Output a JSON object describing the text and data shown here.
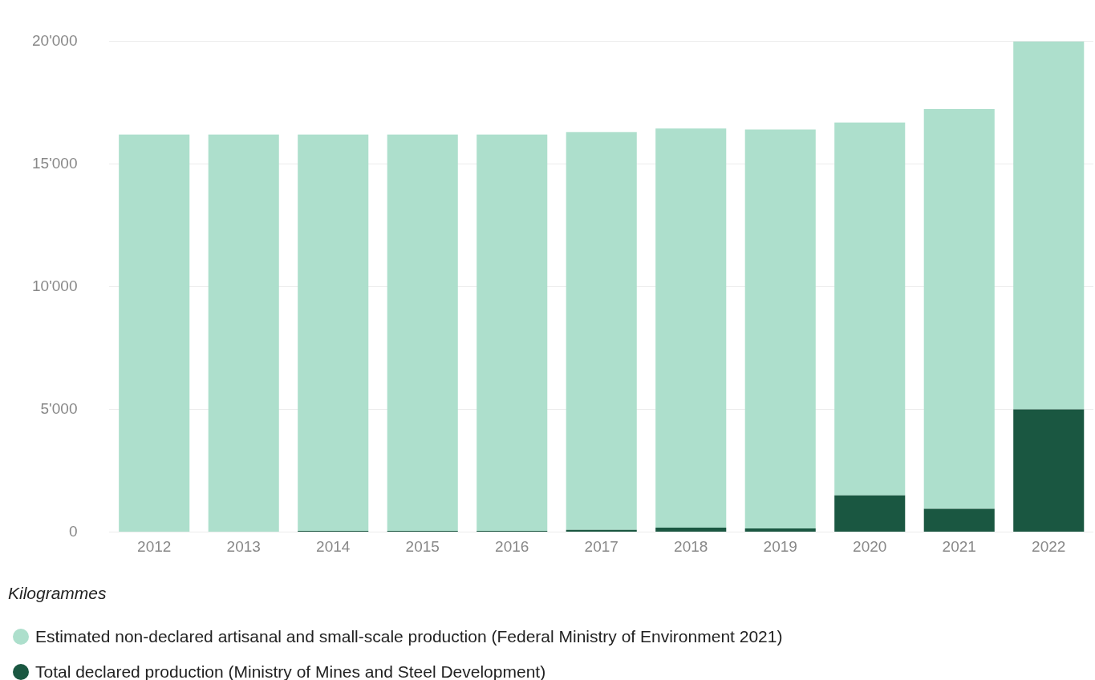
{
  "chart_data": {
    "type": "bar",
    "stacked": true,
    "ylabel": "Kilogrammes",
    "categories": [
      "2012",
      "2013",
      "2014",
      "2015",
      "2016",
      "2017",
      "2018",
      "2019",
      "2020",
      "2021",
      "2022"
    ],
    "series": [
      {
        "name": "Total declared production (Ministry of Mines and Steel Development)",
        "color": "#1a5741",
        "values": [
          0,
          0,
          50,
          50,
          50,
          90,
          180,
          150,
          1500,
          950,
          5000
        ]
      },
      {
        "name": "Estimated non-declared artisanal and small-scale production (Federal Ministry of Environment 2021)",
        "color": "#addfcc",
        "values": [
          16200,
          16200,
          16150,
          16150,
          16150,
          16210,
          16260,
          16250,
          15190,
          16290,
          15000
        ]
      }
    ],
    "ylim": [
      0,
      20000
    ],
    "yticks": [
      {
        "value": 0,
        "label": "0"
      },
      {
        "value": 5000,
        "label": "5'000"
      },
      {
        "value": 10000,
        "label": "10'000"
      },
      {
        "value": 15000,
        "label": "15'000"
      },
      {
        "value": 20000,
        "label": "20'000"
      }
    ],
    "grid": "y",
    "legend": "bottom"
  }
}
